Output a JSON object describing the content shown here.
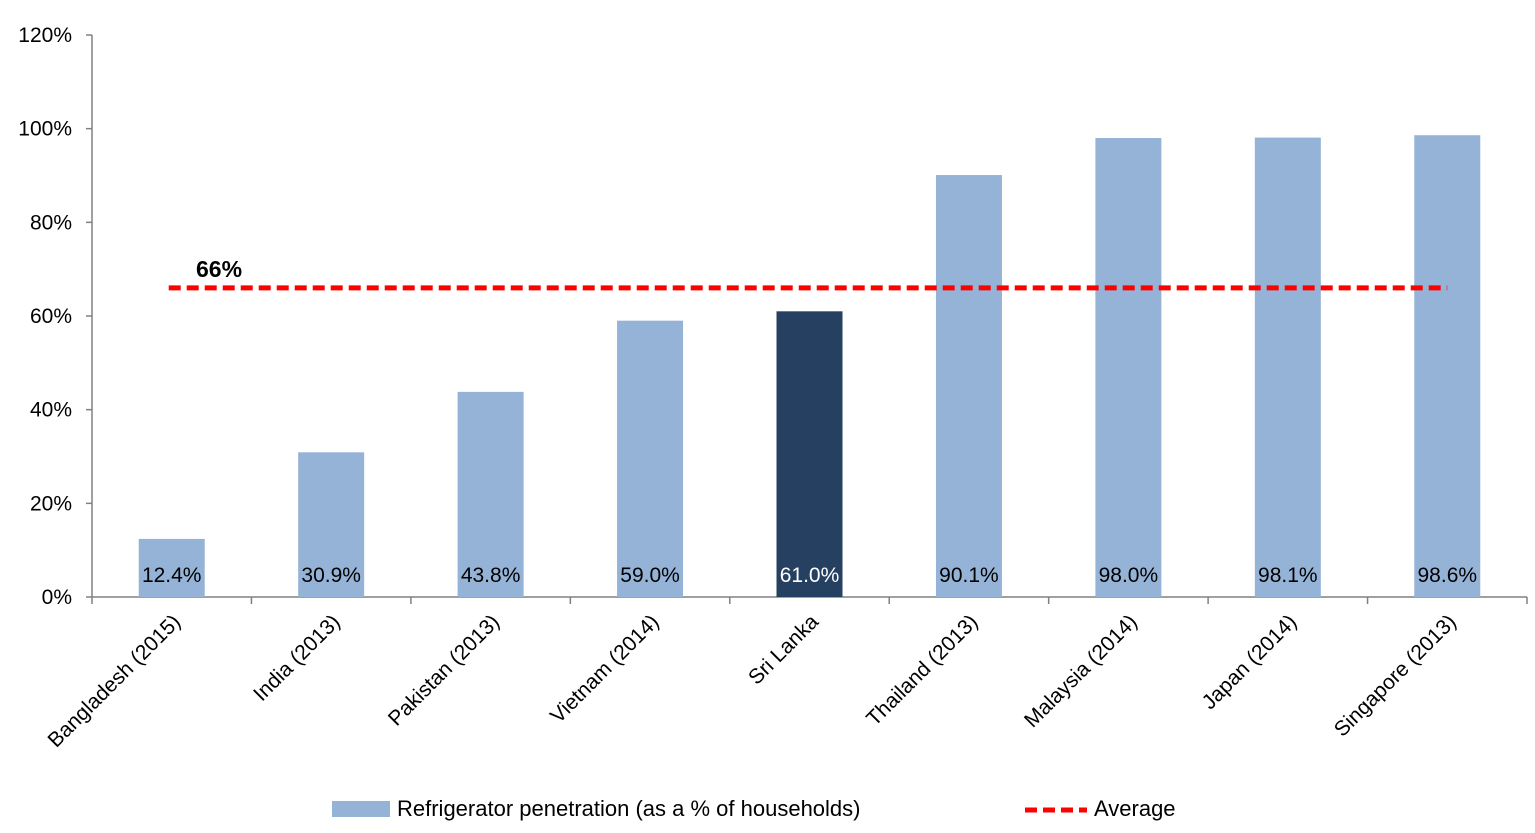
{
  "chart_data": {
    "type": "bar",
    "categories": [
      "Bangladesh (2015)",
      "India (2013)",
      "Pakistan (2013)",
      "Vietnam (2014)",
      "Sri Lanka",
      "Thailand (2013)",
      "Malaysia (2014)",
      "Japan (2014)",
      "Singapore (2013)"
    ],
    "series": [
      {
        "name": "Refrigerator penetration (as a % of households)",
        "values": [
          12.4,
          30.9,
          43.8,
          59.0,
          61.0,
          90.1,
          98.0,
          98.1,
          98.6
        ],
        "data_labels": [
          "12.4%",
          "30.9%",
          "43.8%",
          "59.0%",
          "61.0%",
          "90.1%",
          "98.0%",
          "98.1%",
          "98.6%"
        ],
        "color": "#95b3d7",
        "highlight_index": 4,
        "highlight_color": "#254061"
      }
    ],
    "reference_line": {
      "name": "Average",
      "value": 66,
      "label": "66%",
      "color": "#ff0000",
      "style": "dashed"
    },
    "yticks": [
      "0%",
      "20%",
      "40%",
      "60%",
      "80%",
      "100%",
      "120%"
    ],
    "ytick_values": [
      0,
      20,
      40,
      60,
      80,
      100,
      120
    ],
    "ylim": [
      0,
      120
    ],
    "title": "",
    "xlabel": "",
    "ylabel": "",
    "grid": false,
    "legend_position": "bottom"
  }
}
